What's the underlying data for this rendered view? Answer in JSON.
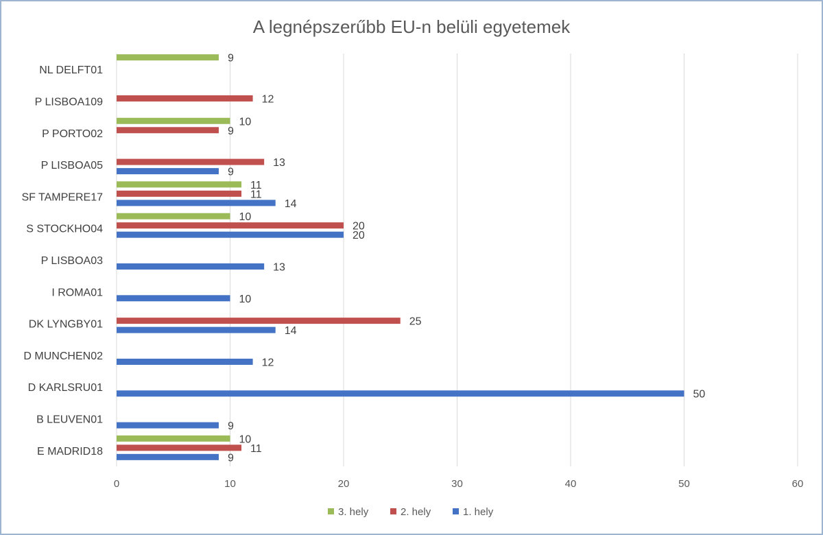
{
  "chart_data": {
    "type": "bar",
    "orientation": "horizontal",
    "title": "A legnépszerűbb EU-n belüli egyetemek",
    "xlabel": "",
    "ylabel": "",
    "xlim": [
      0,
      60
    ],
    "x_ticks": [
      0,
      10,
      20,
      30,
      40,
      50,
      60
    ],
    "grid": true,
    "legend_position": "bottom",
    "categories": [
      "E  MADRID18",
      "B  LEUVEN01",
      "D  KARLSRU01",
      "D  MUNCHEN02",
      "DK LYNGBY01",
      "I  ROMA01",
      "P  LISBOA03",
      "S  STOCKHO04",
      "SF TAMPERE17",
      "P  LISBOA05",
      "P  PORTO02",
      "P  LISBOA109",
      "NL DELFT01"
    ],
    "series": [
      {
        "name": "1. hely",
        "color": "#4472C4",
        "values": [
          9,
          9,
          50,
          12,
          14,
          10,
          13,
          20,
          14,
          9,
          null,
          null,
          null
        ]
      },
      {
        "name": "2. hely",
        "color": "#C0504D",
        "values": [
          11,
          null,
          null,
          null,
          25,
          null,
          null,
          20,
          11,
          13,
          9,
          12,
          null
        ]
      },
      {
        "name": "3. hely",
        "color": "#9BBB59",
        "values": [
          10,
          null,
          null,
          null,
          null,
          null,
          null,
          10,
          11,
          null,
          10,
          null,
          9
        ]
      }
    ],
    "legend_order": [
      "3. hely",
      "2. hely",
      "1. hely"
    ]
  }
}
